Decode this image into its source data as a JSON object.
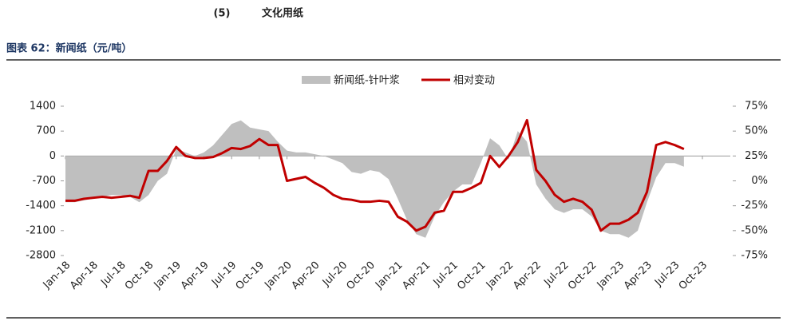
{
  "header": {
    "number": "(5)",
    "title": "文化用纸"
  },
  "caption": "图表 62：新闻纸（元/吨）",
  "chart_data": {
    "type": "area-line",
    "categories": [
      "Jan-18",
      null,
      null,
      "Apr-18",
      null,
      null,
      "Jul-18",
      null,
      null,
      "Oct-18",
      null,
      null,
      "Jan-19",
      null,
      null,
      "Apr-19",
      null,
      null,
      "Jul-19",
      null,
      null,
      "Oct-19",
      null,
      null,
      "Jan-20",
      null,
      null,
      "Apr-20",
      null,
      null,
      "Jul-20",
      null,
      null,
      "Oct-20",
      null,
      null,
      "Jan-21",
      null,
      null,
      "Apr-21",
      null,
      null,
      "Jul-21",
      null,
      null,
      "Oct-21",
      null,
      null,
      "Jan-22",
      null,
      null,
      "Apr-22",
      null,
      null,
      "Jul-22",
      null,
      null,
      "Oct-22",
      null,
      null,
      "Jan-23",
      null,
      null,
      "Apr-23",
      null,
      null,
      "Jul-23",
      null,
      null,
      "Oct-23"
    ],
    "series": [
      {
        "name": "新闻纸-针叶浆",
        "color": "#bfbfbf",
        "kind": "area",
        "axis": "y",
        "values": [
          -1300,
          -1300,
          -1250,
          -1200,
          -1150,
          -1100,
          -1100,
          -1150,
          -1300,
          -1100,
          -700,
          -500,
          200,
          100,
          0,
          100,
          300,
          600,
          900,
          1000,
          800,
          750,
          700,
          400,
          150,
          100,
          100,
          50,
          0,
          -100,
          -200,
          -450,
          -500,
          -400,
          -450,
          -650,
          -1200,
          -1800,
          -2200,
          -2300,
          -1700,
          -1300,
          -1000,
          -800,
          -800,
          -200,
          500,
          300,
          -100,
          700,
          400,
          -800,
          -1200,
          -1500,
          -1600,
          -1500,
          -1500,
          -1700,
          -2100,
          -2200,
          -2200,
          -2300,
          -2100,
          -1300,
          -600,
          -200,
          -200,
          -300,
          null,
          null
        ]
      },
      {
        "name": "相对变动",
        "color": "#c00000",
        "kind": "line",
        "axis": "y2",
        "values": [
          -20,
          -20,
          -18,
          -17,
          -16,
          -17,
          -16,
          -15,
          -17,
          10,
          10,
          20,
          34,
          25,
          23,
          23,
          24,
          28,
          33,
          32,
          35,
          42,
          36,
          36,
          0,
          2,
          4,
          -2,
          -7,
          -14,
          -18,
          -19,
          -21,
          -21,
          -20,
          -21,
          -36,
          -41,
          -50,
          -46,
          -32,
          -30,
          -11,
          -11,
          -7,
          -2,
          25,
          14,
          25,
          39,
          61,
          11,
          0,
          -14,
          -21,
          -18,
          -21,
          -29,
          -50,
          -43,
          -43,
          -39,
          -32,
          -11,
          36,
          39,
          36,
          32,
          null,
          null
        ]
      }
    ],
    "ylim": [
      -2800,
      1400
    ],
    "yticks": [
      1400,
      700,
      0,
      -700,
      -1400,
      -2100,
      -2800
    ],
    "y2lim": [
      -75,
      75
    ],
    "y2ticks": [
      {
        "value": 75,
        "label": "75%"
      },
      {
        "value": 50,
        "label": "50%"
      },
      {
        "value": 25,
        "label": "25%"
      },
      {
        "value": 0,
        "label": "0%"
      },
      {
        "value": -25,
        "label": "-25%"
      },
      {
        "value": -50,
        "label": "-50%"
      },
      {
        "value": -75,
        "label": "-75%"
      }
    ],
    "legend": "top"
  }
}
